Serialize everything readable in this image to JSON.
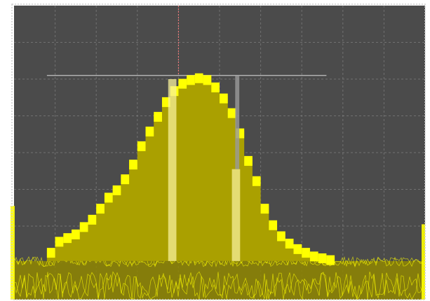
{
  "display": {
    "screen_color": "#4b4b4b",
    "grid_color": "#8a8a8a",
    "trace_color": "#ffff00",
    "fill_color": "#aaa000",
    "noise_fill_color": "#8f8600",
    "marker_color": "#ff7a7a",
    "highlight_color": "#f7f09a"
  },
  "chart_data": {
    "type": "area",
    "title": "",
    "xlabel": "",
    "ylabel": "",
    "grid": true,
    "legend": "none",
    "xlim": [
      0,
      10
    ],
    "ylim": [
      0,
      8
    ],
    "grid_divisions": {
      "x": 10,
      "y": 8
    },
    "marker_x": 4.0,
    "reference_level": 6.1,
    "noise_floor": 1.05,
    "series": [
      {
        "x": [
          0.9,
          1.1,
          1.3,
          1.5,
          1.7,
          1.9,
          2.1,
          2.3,
          2.5,
          2.7,
          2.9,
          3.1,
          3.3,
          3.5,
          3.7,
          3.9,
          4.1,
          4.3,
          4.5,
          4.7,
          4.9,
          5.1,
          5.3,
          5.5,
          5.7,
          5.9,
          6.1,
          6.3,
          6.5,
          6.7,
          6.9,
          7.1,
          7.3,
          7.5,
          7.7
        ],
        "values": [
          1.35,
          1.65,
          1.75,
          1.85,
          2.05,
          2.25,
          2.55,
          2.85,
          3.05,
          3.35,
          3.75,
          4.25,
          4.65,
          5.05,
          5.45,
          5.75,
          5.95,
          6.05,
          6.1,
          6.05,
          5.85,
          5.55,
          5.15,
          4.6,
          3.85,
          3.3,
          2.55,
          2.1,
          1.8,
          1.6,
          1.45,
          1.35,
          1.25,
          1.2,
          1.15
        ]
      }
    ]
  }
}
